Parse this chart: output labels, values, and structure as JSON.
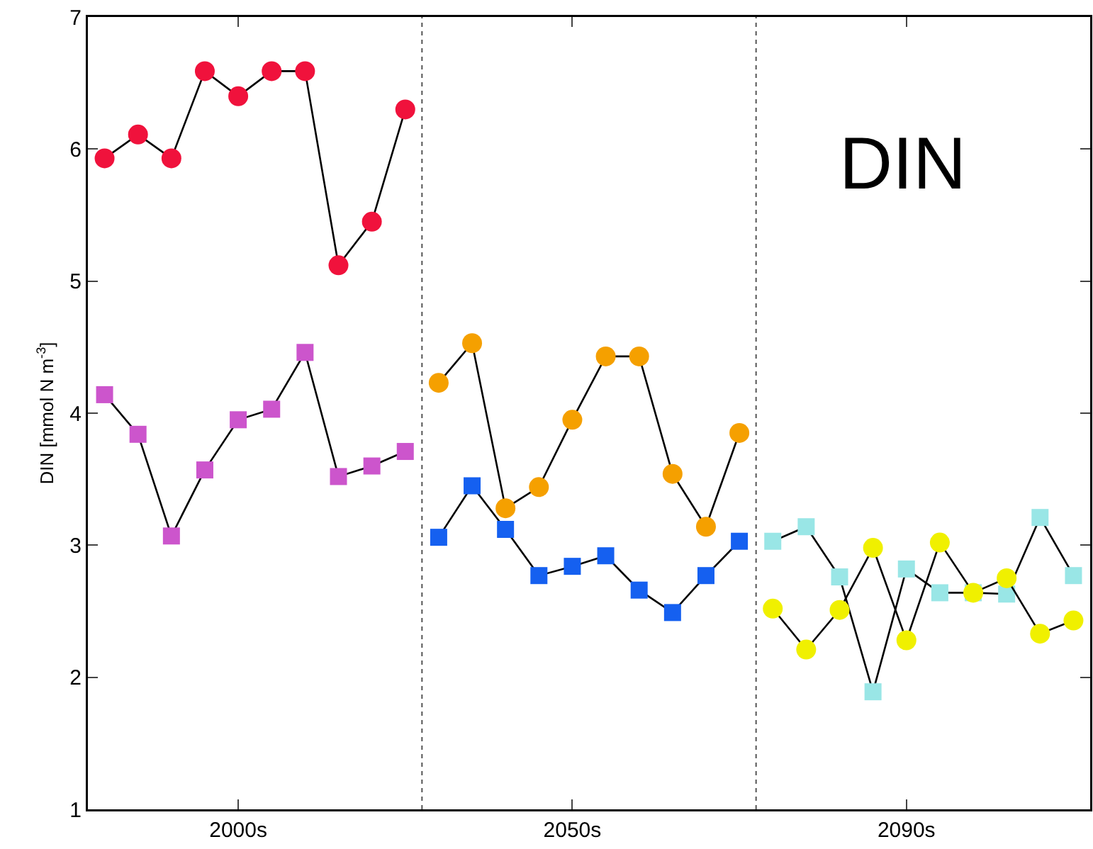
{
  "chart_data": {
    "type": "line",
    "ylabel": "DIN [mmol N m$^{-3}$]",
    "annotations": [
      "DIN"
    ],
    "categories": [
      null,
      null,
      null,
      null,
      "2000s",
      null,
      null,
      null,
      null,
      null,
      null,
      null,
      null,
      null,
      "2050s",
      null,
      null,
      null,
      null,
      null,
      null,
      null,
      null,
      null,
      "2090s",
      null,
      null,
      null,
      null,
      null
    ],
    "ylim": [
      1,
      7
    ],
    "yticks": [
      1,
      2,
      3,
      4,
      5,
      6,
      7
    ],
    "grid": false,
    "series": [
      {
        "color": "#f0123c",
        "marker": "circle",
        "values": [
          5.93,
          6.11,
          5.93,
          6.59,
          6.4,
          6.59,
          6.59,
          5.12,
          5.45,
          6.3,
          null,
          null,
          null,
          null,
          null,
          null,
          null,
          null,
          null,
          null,
          null,
          null,
          null,
          null,
          null,
          null,
          null,
          null,
          null,
          null
        ]
      },
      {
        "color": "#cc55cc",
        "marker": "square",
        "values": [
          4.14,
          3.84,
          3.07,
          3.57,
          3.95,
          4.03,
          4.46,
          3.52,
          3.6,
          3.71,
          null,
          null,
          null,
          null,
          null,
          null,
          null,
          null,
          null,
          null,
          null,
          null,
          null,
          null,
          null,
          null,
          null,
          null,
          null,
          null
        ]
      },
      {
        "color": "#f5a000",
        "marker": "circle",
        "values": [
          null,
          null,
          null,
          null,
          null,
          null,
          null,
          null,
          null,
          null,
          4.23,
          4.53,
          3.28,
          3.44,
          3.95,
          4.43,
          4.43,
          3.54,
          3.14,
          3.85,
          null,
          null,
          null,
          null,
          null,
          null,
          null,
          null,
          null,
          null
        ]
      },
      {
        "color": "#1560f0",
        "marker": "square",
        "values": [
          null,
          null,
          null,
          null,
          null,
          null,
          null,
          null,
          null,
          null,
          3.06,
          3.45,
          3.12,
          2.77,
          2.84,
          2.92,
          2.66,
          2.49,
          2.77,
          3.03,
          null,
          null,
          null,
          null,
          null,
          null,
          null,
          null,
          null,
          null
        ]
      },
      {
        "color": "#99e6e6",
        "marker": "square",
        "values": [
          null,
          null,
          null,
          null,
          null,
          null,
          null,
          null,
          null,
          null,
          null,
          null,
          null,
          null,
          null,
          null,
          null,
          null,
          null,
          null,
          3.03,
          3.14,
          2.76,
          1.89,
          2.82,
          2.64,
          2.64,
          2.63,
          3.21,
          2.77
        ]
      },
      {
        "color": "#f0f000",
        "marker": "circle",
        "values": [
          null,
          null,
          null,
          null,
          null,
          null,
          null,
          null,
          null,
          null,
          null,
          null,
          null,
          null,
          null,
          null,
          null,
          null,
          null,
          null,
          2.52,
          2.21,
          2.51,
          2.98,
          2.28,
          3.02,
          2.64,
          2.75,
          2.33,
          2.43
        ]
      }
    ]
  }
}
